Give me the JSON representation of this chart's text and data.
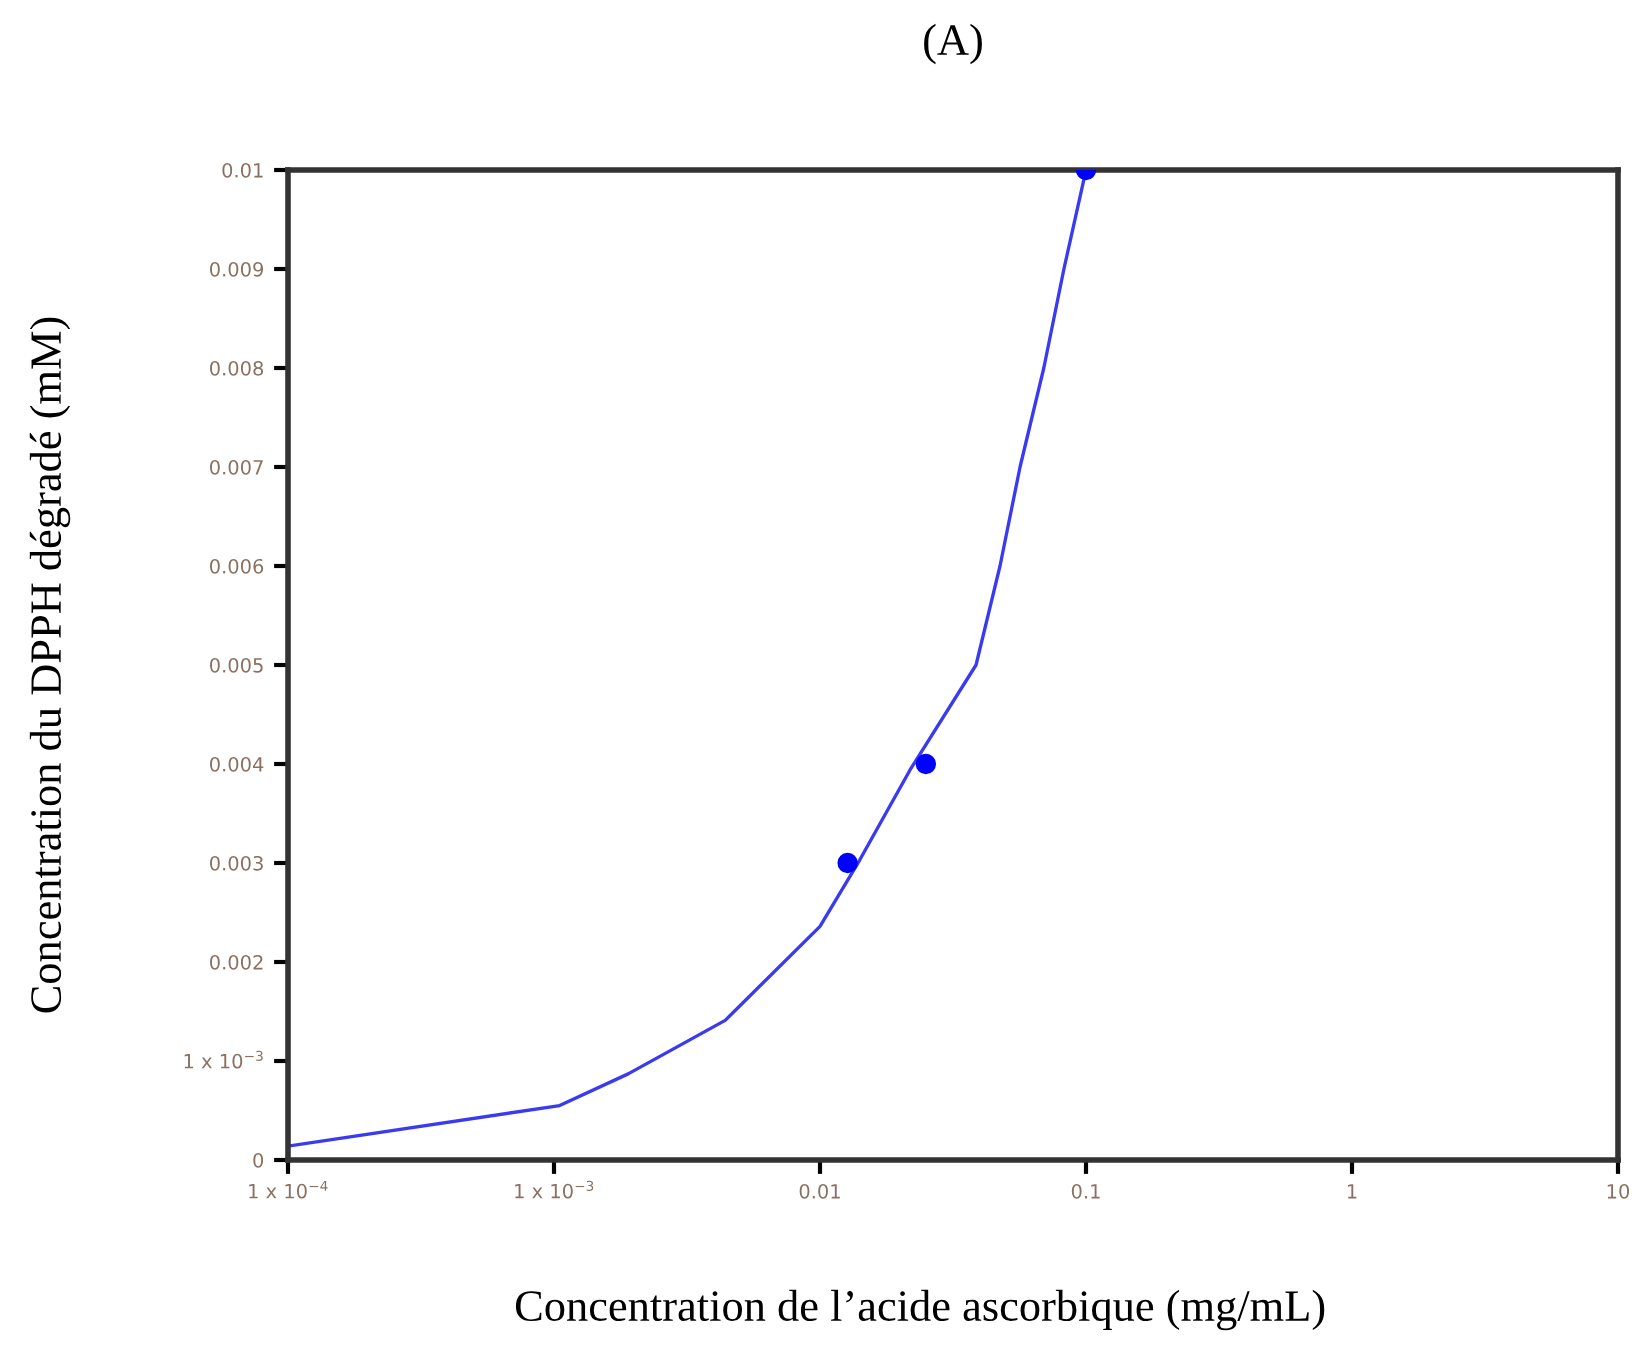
{
  "chart_data": {
    "type": "scatter",
    "title": "(A)",
    "xlabel": "Concentration de l’acide ascorbique (mg/mL)",
    "ylabel": "Concentration du DPPH dégradé (mM)",
    "log": "x",
    "xlim": [
      0.0001,
      10
    ],
    "ylim": [
      0,
      0.01
    ],
    "xticks": [
      {
        "value": 0.0001,
        "label": "1 x 10$^{−4}$"
      },
      {
        "value": 0.001,
        "label": "1 x 10$^{−3}$"
      },
      0.01,
      0.1,
      1,
      10
    ],
    "yticks": [
      0,
      {
        "value": 0.001,
        "label": "1 x 10$^{−3}$"
      },
      0.002,
      0.003,
      0.004,
      0.005,
      0.006,
      0.007,
      0.008,
      0.009,
      0.01
    ],
    "grid": false,
    "series": [
      {
        "type": "line",
        "color": "#3a3af0",
        "marker": "none",
        "line_style": "solid",
        "x": [
          0.0001,
          0.00105,
          0.0019,
          0.0044,
          0.01,
          0.0141,
          0.0218,
          0.0386,
          0.0475,
          0.0565,
          0.0694,
          0.0826,
          0.1
        ],
        "values": [
          0.00014,
          0.00055,
          0.00087,
          0.00141,
          0.00236,
          0.00303,
          0.00394,
          0.005,
          0.006,
          0.007,
          0.008,
          0.009,
          0.01
        ]
      },
      {
        "color": "#0000ff",
        "marker": "circle",
        "x": [
          0.0127,
          0.025,
          0.1
        ],
        "values": [
          0.003,
          0.004,
          0.01
        ]
      }
    ]
  }
}
